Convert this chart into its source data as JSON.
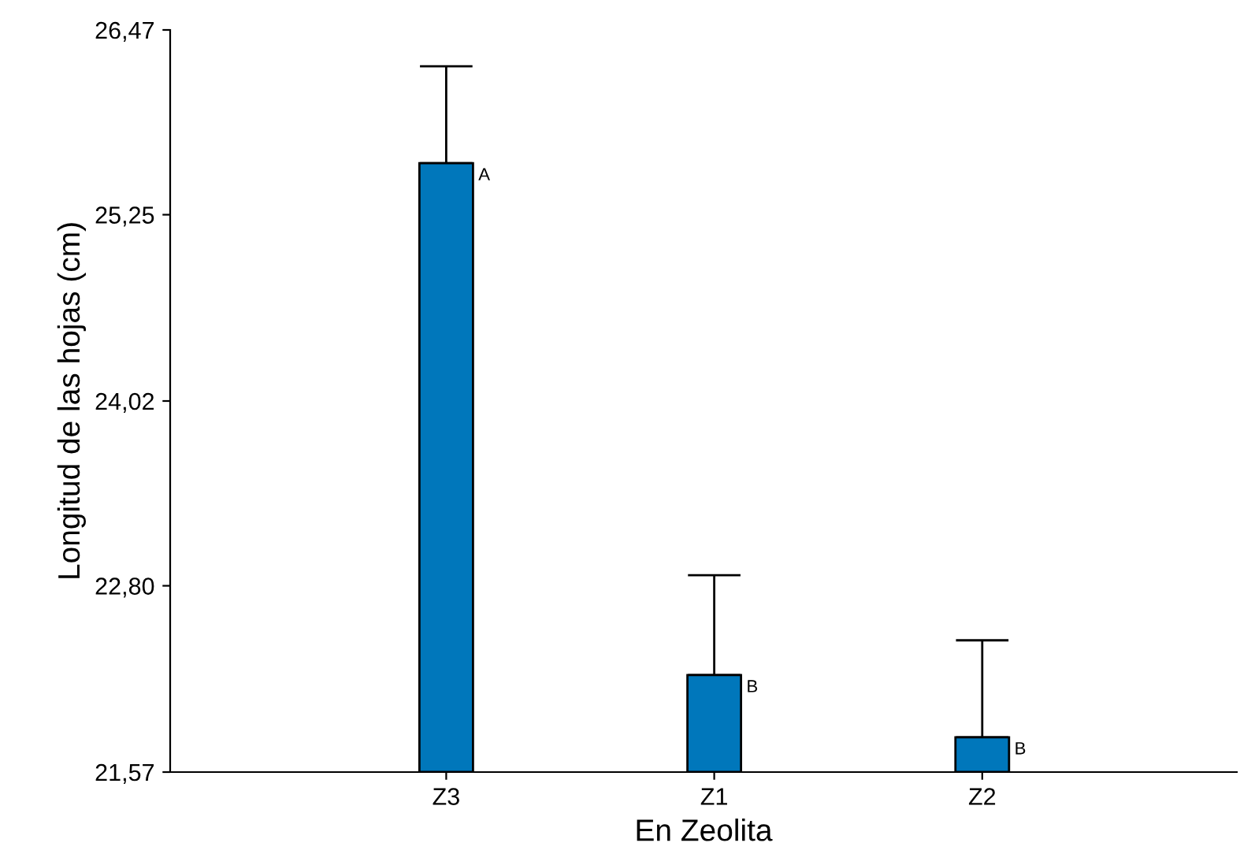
{
  "chart_data": {
    "type": "bar",
    "xlabel": "En Zeolita",
    "ylabel": "Longitud de las hojas (cm)",
    "categories": [
      "Z3",
      "Z1",
      "Z2"
    ],
    "values": [
      25.59,
      22.21,
      21.8
    ],
    "errors": [
      [
        25.59,
        26.23
      ],
      [
        22.21,
        22.87
      ],
      [
        21.8,
        22.44
      ]
    ],
    "color": "#0077bb",
    "ylim": [
      21.57,
      26.47
    ],
    "yticks": [
      {
        "value": 21.57,
        "label": "21,57"
      },
      {
        "value": 22.8,
        "label": "22,80"
      },
      {
        "value": 24.02,
        "label": "24,02"
      },
      {
        "value": 25.25,
        "label": "25,25"
      },
      {
        "value": 26.47,
        "label": "26,47"
      }
    ],
    "annotations": [
      {
        "text": "A",
        "x": "Z3",
        "y": 25.59
      },
      {
        "text": "B",
        "x": "Z1",
        "y": 22.21
      },
      {
        "text": "B",
        "x": "Z2",
        "y": 21.8
      }
    ],
    "grid": false,
    "legend": false
  }
}
